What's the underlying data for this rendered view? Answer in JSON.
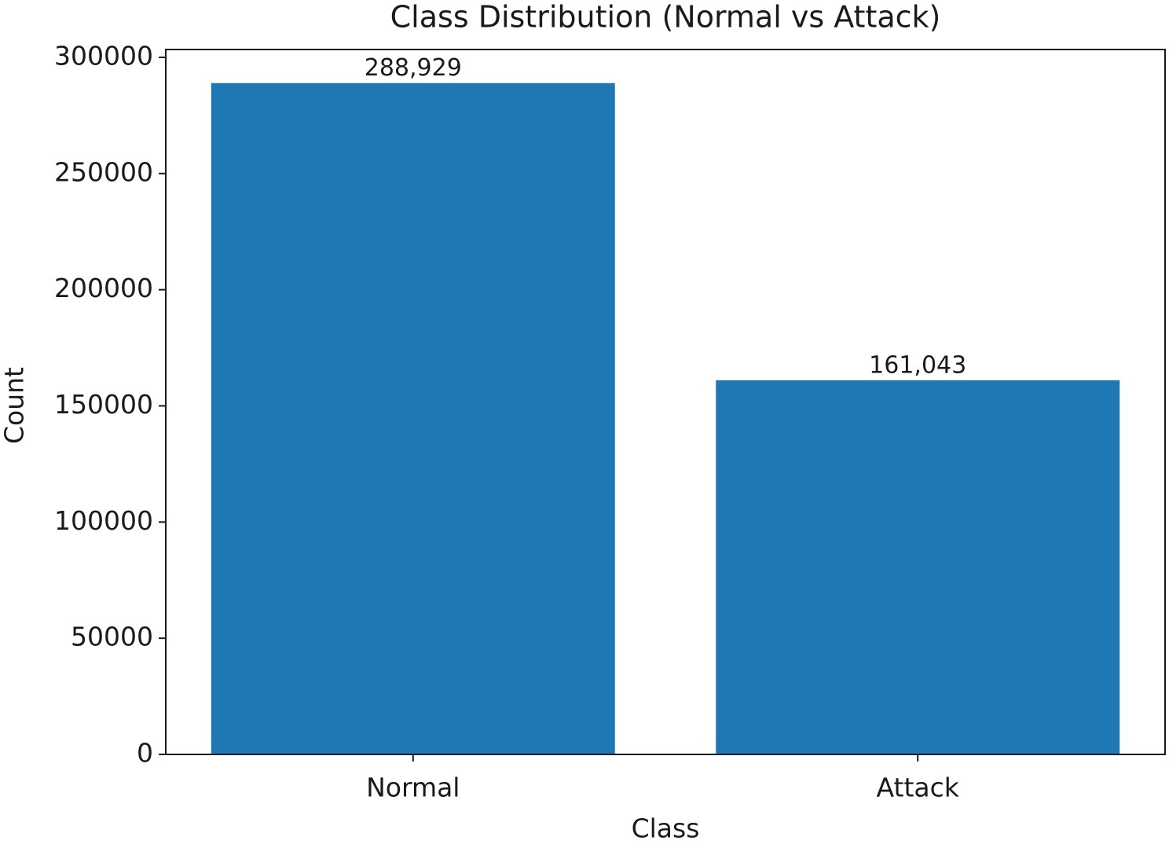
{
  "chart_data": {
    "type": "bar",
    "title": "Class Distribution (Normal vs Attack)",
    "x_label": "Class",
    "y_label": "Count",
    "categories": [
      "Normal",
      "Attack"
    ],
    "values": [
      288929,
      161043
    ],
    "value_labels": [
      "288,929",
      "161,043"
    ],
    "color": "#1f77b4",
    "ylim": [
      0,
      303375
    ],
    "yticks": [
      0,
      50000,
      100000,
      150000,
      200000,
      250000,
      300000
    ],
    "grid": false
  }
}
